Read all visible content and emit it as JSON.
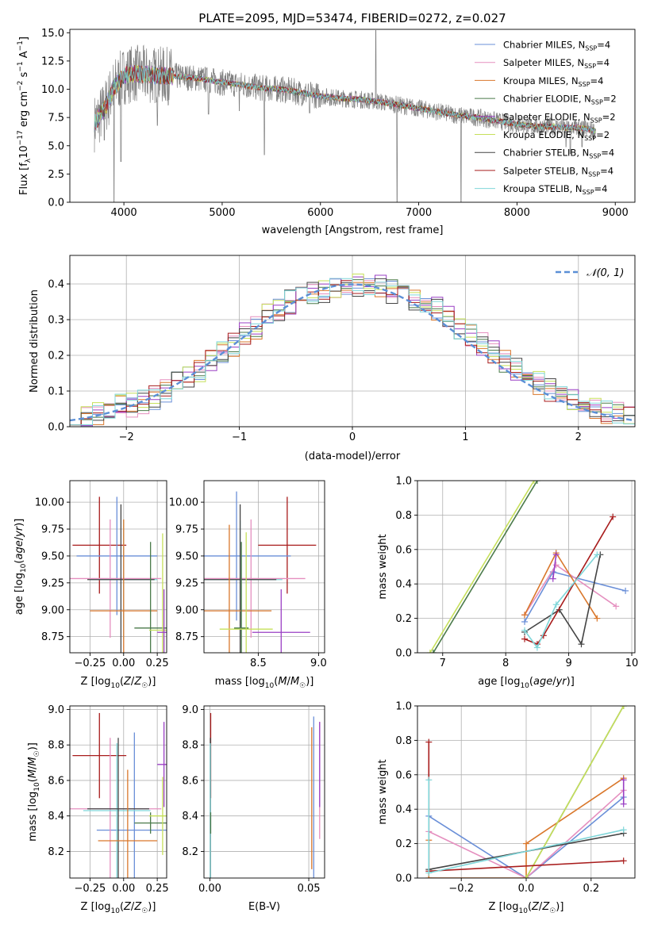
{
  "figure": {
    "title": "PLATE=2095, MJD=53474, FIBERID=0272, z=0.027"
  },
  "colors": {
    "Chabrier MILES": "#6a8fd8",
    "Salpeter MILES": "#e58fbf",
    "Kroupa MILES": "#d9772b",
    "Chabrier ELODIE": "#4a7a4a",
    "Salpeter ELODIE": "#9a3fc4",
    "Kroupa ELODIE": "#c6e05a",
    "Chabrier STELIB": "#444444",
    "Salpeter STELIB": "#a81c1c",
    "Kroupa STELIB": "#7fd6d9",
    "data": "#808080",
    "normal": "#5b8fd6"
  },
  "chart_data": [
    {
      "id": "spectrum",
      "type": "line",
      "title": "PLATE=2095, MJD=53474, FIBERID=0272, z=0.027",
      "xlabel": "wavelength [Angstrom, rest frame]",
      "ylabel": "Flux [f_λ 10^-17 erg cm^-2 s^-1 A^-1]",
      "xlim": [
        3450,
        9200
      ],
      "ylim": [
        0,
        15.3
      ],
      "xticks": [
        4000,
        5000,
        6000,
        7000,
        8000,
        9000
      ],
      "yticks": [
        0.0,
        2.5,
        5.0,
        7.5,
        10.0,
        12.5,
        15.0
      ],
      "grid": false,
      "legend_position": "top-right",
      "legend": [
        {
          "label": "Chabrier MILES, N",
          "sub": "SSP",
          "tail": "=4",
          "key": "Chabrier MILES"
        },
        {
          "label": "Salpeter MILES, N",
          "sub": "SSP",
          "tail": "=4",
          "key": "Salpeter MILES"
        },
        {
          "label": "Kroupa MILES, N",
          "sub": "SSP",
          "tail": "=4",
          "key": "Kroupa MILES"
        },
        {
          "label": "Chabrier ELODIE, N",
          "sub": "SSP",
          "tail": "=2",
          "key": "Chabrier ELODIE"
        },
        {
          "label": "Salpeter ELODIE, N",
          "sub": "SSP",
          "tail": "=2",
          "key": "Salpeter ELODIE"
        },
        {
          "label": "Kroupa ELODIE, N",
          "sub": "SSP",
          "tail": "=2",
          "key": "Kroupa ELODIE"
        },
        {
          "label": "Chabrier STELIB, N",
          "sub": "SSP",
          "tail": "=4",
          "key": "Chabrier STELIB"
        },
        {
          "label": "Salpeter STELIB, N",
          "sub": "SSP",
          "tail": "=4",
          "key": "Salpeter STELIB"
        },
        {
          "label": "Kroupa STELIB, N",
          "sub": "SSP",
          "tail": "=4",
          "key": "Kroupa STELIB"
        }
      ],
      "continuum": [
        [
          3700,
          7.0
        ],
        [
          3800,
          8.2
        ],
        [
          3900,
          10.2
        ],
        [
          4000,
          11.2
        ],
        [
          4100,
          11.4
        ],
        [
          4200,
          11.3
        ],
        [
          4400,
          11.2
        ],
        [
          4600,
          11.1
        ],
        [
          4800,
          10.9
        ],
        [
          5000,
          10.6
        ],
        [
          5200,
          10.4
        ],
        [
          5400,
          10.1
        ],
        [
          5600,
          10.0
        ],
        [
          5800,
          9.7
        ],
        [
          6000,
          9.4
        ],
        [
          6200,
          9.2
        ],
        [
          6400,
          9.1
        ],
        [
          6600,
          8.9
        ],
        [
          6800,
          8.6
        ],
        [
          7000,
          8.3
        ],
        [
          7200,
          8.0
        ],
        [
          7400,
          7.7
        ],
        [
          7600,
          7.5
        ],
        [
          7800,
          7.2
        ],
        [
          8000,
          6.9
        ],
        [
          8200,
          6.7
        ],
        [
          8400,
          6.7
        ],
        [
          8500,
          6.6
        ],
        [
          8600,
          6.6
        ],
        [
          8700,
          6.5
        ],
        [
          8800,
          6.3
        ]
      ],
      "data_wavelength_range": [
        3700,
        8800
      ],
      "features": [
        {
          "x": 3800,
          "y": 5.5
        },
        {
          "x": 3900,
          "y": 0.0
        },
        {
          "x": 3970,
          "y": 3.6
        },
        {
          "x": 4340,
          "y": 6.8
        },
        {
          "x": 4861,
          "y": 7.8
        },
        {
          "x": 5175,
          "y": 8.1
        },
        {
          "x": 5430,
          "y": 4.2
        },
        {
          "x": 5890,
          "y": 7.9
        },
        {
          "x": 6563,
          "y": 15.2
        },
        {
          "x": 6780,
          "y": 0.0
        },
        {
          "x": 7430,
          "y": 0.0
        },
        {
          "x": 8498,
          "y": 4.9
        },
        {
          "x": 8542,
          "y": 4.3
        },
        {
          "x": 8662,
          "y": 4.9
        }
      ]
    },
    {
      "id": "residuals",
      "type": "line",
      "xlabel": "(data-model)/error",
      "ylabel": "Normed distribution",
      "xlim": [
        -2.5,
        2.5
      ],
      "ylim": [
        0,
        0.48
      ],
      "xticks": [
        -2,
        -1,
        0,
        1,
        2
      ],
      "yticks": [
        0.0,
        0.1,
        0.2,
        0.3,
        0.4
      ],
      "grid": true,
      "legend_position": "top-right",
      "legend": [
        {
          "label": "𝒩(0, 1)",
          "key": "normal",
          "style": "dashed"
        }
      ],
      "bin_width": 0.1,
      "bins_from": -2.5,
      "histogram_envelope": [
        0.04,
        0.03,
        0.04,
        0.05,
        0.06,
        0.06,
        0.07,
        0.08,
        0.1,
        0.12,
        0.14,
        0.16,
        0.18,
        0.21,
        0.23,
        0.26,
        0.28,
        0.31,
        0.33,
        0.35,
        0.36,
        0.37,
        0.38,
        0.39,
        0.39,
        0.4,
        0.39,
        0.39,
        0.38,
        0.37,
        0.36,
        0.35,
        0.33,
        0.31,
        0.28,
        0.26,
        0.23,
        0.21,
        0.18,
        0.16,
        0.14,
        0.12,
        0.1,
        0.08,
        0.07,
        0.06,
        0.05,
        0.04,
        0.04,
        0.03
      ]
    },
    {
      "id": "age-vs-Z",
      "type": "scatter",
      "xlabel": "Z [log10(Z/Z☉)]",
      "ylabel": "age  [log10(age/yr)]",
      "xlim": [
        -0.4,
        0.32
      ],
      "ylim": [
        8.6,
        10.2
      ],
      "xticks": [
        -0.25,
        0.0,
        0.25
      ],
      "xticklabels": [
        "−0.25",
        "0.00",
        "0.25"
      ],
      "yticks": [
        8.75,
        9.0,
        9.25,
        9.5,
        9.75,
        10.0
      ],
      "grid": true,
      "points": [
        {
          "key": "Salpeter STELIB",
          "x": -0.18,
          "xerr": 0.2,
          "y": 9.6,
          "yerr": 0.45
        },
        {
          "key": "Chabrier MILES",
          "x": -0.05,
          "xerr": 0.3,
          "y": 9.5,
          "yerr": 0.55
        },
        {
          "key": "Salpeter MILES",
          "x": -0.1,
          "xerr": 0.38,
          "y": 9.29,
          "yerr": 0.55
        },
        {
          "key": "Kroupa STELIB",
          "x": 0.0,
          "xerr": 0.25,
          "y": 9.28,
          "yerr": 0.55
        },
        {
          "key": "Chabrier STELIB",
          "x": -0.02,
          "xerr": 0.25,
          "y": 9.28,
          "yerr": 0.7
        },
        {
          "key": "Kroupa MILES",
          "x": 0.0,
          "xerr": 0.25,
          "y": 8.99,
          "yerr": 0.85
        },
        {
          "key": "Chabrier ELODIE",
          "x": 0.2,
          "xerr": 0.12,
          "y": 8.83,
          "yerr": 0.8
        },
        {
          "key": "Kroupa ELODIE",
          "x": 0.29,
          "xerr": 0.1,
          "y": 8.81,
          "yerr": 0.9
        },
        {
          "key": "Salpeter ELODIE",
          "x": 0.3,
          "xerr": 0.05,
          "y": 8.79,
          "yerr": 0.4
        }
      ]
    },
    {
      "id": "age-vs-mass",
      "type": "scatter",
      "xlabel": "mass [log10(M/M☉)]",
      "ylabel": "",
      "xlim": [
        8.05,
        9.05
      ],
      "ylim": [
        8.6,
        10.2
      ],
      "xticks": [
        8.5,
        9.0
      ],
      "xticklabels": [
        "8.5",
        "9.0"
      ],
      "yticks": [
        8.75,
        9.0,
        9.25,
        9.5,
        9.75,
        10.0
      ],
      "grid": true,
      "points": [
        {
          "key": "Salpeter STELIB",
          "x": 8.74,
          "xerr": 0.24,
          "y": 9.6,
          "yerr": 0.45
        },
        {
          "key": "Chabrier MILES",
          "x": 8.32,
          "xerr": 0.45,
          "y": 9.5,
          "yerr": 0.6
        },
        {
          "key": "Salpeter MILES",
          "x": 8.44,
          "xerr": 0.45,
          "y": 9.29,
          "yerr": 0.55
        },
        {
          "key": "Kroupa STELIB",
          "x": 8.35,
          "xerr": 0.35,
          "y": 9.28,
          "yerr": 0.55
        },
        {
          "key": "Chabrier STELIB",
          "x": 8.35,
          "xerr": 0.3,
          "y": 9.28,
          "yerr": 0.7
        },
        {
          "key": "Kroupa MILES",
          "x": 8.26,
          "xerr": 0.35,
          "y": 8.99,
          "yerr": 0.8
        },
        {
          "key": "Chabrier ELODIE",
          "x": 8.36,
          "xerr": 0.06,
          "y": 8.83,
          "yerr": 0.8
        },
        {
          "key": "Kroupa ELODIE",
          "x": 8.4,
          "xerr": 0.22,
          "y": 8.82,
          "yerr": 0.9
        },
        {
          "key": "Salpeter ELODIE",
          "x": 8.69,
          "xerr": 0.24,
          "y": 8.79,
          "yerr": 0.4
        }
      ]
    },
    {
      "id": "weight-vs-age",
      "type": "line",
      "xlabel": "age  [log10(age/yr)]",
      "ylabel": "mass weight",
      "xlim": [
        6.6,
        10.05
      ],
      "ylim": [
        0,
        1.0
      ],
      "xticks": [
        7,
        8,
        9,
        10
      ],
      "yticks": [
        0.0,
        0.2,
        0.4,
        0.6,
        0.8,
        1.0
      ],
      "grid": true,
      "series": [
        {
          "key": "Chabrier MILES",
          "x": [
            8.3,
            8.75,
            9.9
          ],
          "y": [
            0.18,
            0.47,
            0.36
          ]
        },
        {
          "key": "Salpeter MILES",
          "x": [
            8.3,
            8.8,
            9.75
          ],
          "y": [
            0.22,
            0.51,
            0.27
          ]
        },
        {
          "key": "Kroupa MILES",
          "x": [
            8.3,
            8.8,
            9.45
          ],
          "y": [
            0.22,
            0.58,
            0.2
          ]
        },
        {
          "key": "Chabrier ELODIE",
          "x": [
            6.85,
            8.5
          ],
          "y": [
            0.0,
            1.0
          ]
        },
        {
          "key": "Salpeter ELODIE",
          "x": [
            8.75,
            8.8
          ],
          "y": [
            0.43,
            0.57
          ]
        },
        {
          "key": "Kroupa ELODIE",
          "x": [
            6.8,
            8.45
          ],
          "y": [
            0.0,
            1.0
          ]
        },
        {
          "key": "Chabrier STELIB",
          "x": [
            8.3,
            8.85,
            9.2,
            9.5
          ],
          "y": [
            0.12,
            0.25,
            0.05,
            0.57
          ]
        },
        {
          "key": "Salpeter STELIB",
          "x": [
            8.3,
            8.5,
            8.6,
            9.7
          ],
          "y": [
            0.08,
            0.05,
            0.1,
            0.79
          ]
        },
        {
          "key": "Kroupa STELIB",
          "x": [
            8.3,
            8.5,
            8.8,
            9.45
          ],
          "y": [
            0.13,
            0.03,
            0.28,
            0.57
          ]
        }
      ]
    },
    {
      "id": "mass-vs-Z",
      "type": "scatter",
      "xlabel": "Z [log10(Z/Z☉)]",
      "ylabel": "mass [log10(M/M☉)]",
      "xlim": [
        -0.4,
        0.32
      ],
      "ylim": [
        8.05,
        9.02
      ],
      "xticks": [
        -0.25,
        0.0,
        0.25
      ],
      "xticklabels": [
        "−0.25",
        "0.00",
        "0.25"
      ],
      "yticks": [
        8.2,
        8.4,
        8.6,
        8.8,
        9.0
      ],
      "grid": true,
      "points": [
        {
          "key": "Salpeter STELIB",
          "x": -0.18,
          "xerr": 0.2,
          "y": 8.74,
          "yerr": 0.24
        },
        {
          "key": "Chabrier MILES",
          "x": 0.08,
          "xerr": 0.28,
          "y": 8.32,
          "yerr": 0.55
        },
        {
          "key": "Salpeter MILES",
          "x": -0.1,
          "xerr": 0.38,
          "y": 8.44,
          "yerr": 0.4
        },
        {
          "key": "Kroupa STELIB",
          "x": -0.05,
          "xerr": 0.25,
          "y": 8.43,
          "yerr": 0.38
        },
        {
          "key": "Chabrier STELIB",
          "x": -0.04,
          "xerr": 0.23,
          "y": 8.44,
          "yerr": 0.4
        },
        {
          "key": "Kroupa MILES",
          "x": 0.03,
          "xerr": 0.22,
          "y": 8.26,
          "yerr": 0.4
        },
        {
          "key": "Chabrier ELODIE",
          "x": 0.2,
          "xerr": 0.12,
          "y": 8.36,
          "yerr": 0.06
        },
        {
          "key": "Kroupa ELODIE",
          "x": 0.29,
          "xerr": 0.1,
          "y": 8.4,
          "yerr": 0.22
        },
        {
          "key": "Salpeter ELODIE",
          "x": 0.3,
          "xerr": 0.05,
          "y": 8.69,
          "yerr": 0.24
        }
      ]
    },
    {
      "id": "mass-vs-ebv",
      "type": "scatter",
      "xlabel": "E(B-V)",
      "ylabel": "",
      "xlim": [
        -0.003,
        0.058
      ],
      "ylim": [
        8.05,
        9.02
      ],
      "xticks": [
        0.0,
        0.05
      ],
      "xticklabels": [
        "0.00",
        "0.05"
      ],
      "yticks": [
        8.2,
        8.4,
        8.6,
        8.8,
        9.0
      ],
      "grid": true,
      "points": [
        {
          "key": "Salpeter STELIB",
          "x": 0.0004,
          "xerr": 0.0,
          "y": 8.74,
          "yerr": 0.24
        },
        {
          "key": "Chabrier STELIB",
          "x": 0.0003,
          "xerr": 0.0,
          "y": 8.44,
          "yerr": 0.4
        },
        {
          "key": "Kroupa STELIB",
          "x": 0.0002,
          "xerr": 0.0,
          "y": 8.43,
          "yerr": 0.38
        },
        {
          "key": "Chabrier ELODIE",
          "x": 0.0004,
          "xerr": 0.0,
          "y": 8.36,
          "yerr": 0.06
        },
        {
          "key": "Chabrier MILES",
          "x": 0.0525,
          "xerr": 0.0,
          "y": 8.5,
          "yerr": 0.46
        },
        {
          "key": "Salpeter MILES",
          "x": 0.0555,
          "xerr": 0.0,
          "y": 8.6,
          "yerr": 0.33
        },
        {
          "key": "Kroupa MILES",
          "x": 0.0515,
          "xerr": 0.0,
          "y": 8.5,
          "yerr": 0.4
        },
        {
          "key": "Salpeter ELODIE",
          "x": 0.0555,
          "xerr": 0.0,
          "y": 8.69,
          "yerr": 0.24
        }
      ]
    },
    {
      "id": "weight-vs-Z",
      "type": "line",
      "xlabel": "Z [log10(Z/Z☉)]",
      "ylabel": "mass weight",
      "xlim": [
        -0.335,
        0.335
      ],
      "ylim": [
        0,
        1.0
      ],
      "xticks": [
        -0.2,
        0.0,
        0.2
      ],
      "xticklabels": [
        "−0.2",
        "0.0",
        "0.2"
      ],
      "yticks": [
        0.0,
        0.2,
        0.4,
        0.6,
        0.8,
        1.0
      ],
      "grid": true,
      "series": [
        {
          "key": "Chabrier MILES",
          "x": [
            -0.3,
            0.0,
            0.3
          ],
          "y": [
            0.36,
            0.0,
            0.47
          ]
        },
        {
          "key": "Salpeter MILES",
          "x": [
            -0.3,
            0.0,
            0.3
          ],
          "y": [
            0.27,
            0.0,
            0.51
          ]
        },
        {
          "key": "Kroupa MILES",
          "x": [
            -0.3,
            -0.3,
            0.0,
            0.0,
            0.3
          ],
          "y": [
            0.22,
            0.0,
            0.0,
            0.2,
            0.58
          ]
        },
        {
          "key": "Chabrier ELODIE",
          "x": [
            0.0,
            0.3
          ],
          "y": [
            0.0,
            1.0
          ]
        },
        {
          "key": "Salpeter ELODIE",
          "x": [
            0.3,
            0.3
          ],
          "y": [
            0.43,
            0.57
          ]
        },
        {
          "key": "Kroupa ELODIE",
          "x": [
            0.0,
            0.3
          ],
          "y": [
            0.0,
            1.0
          ]
        },
        {
          "key": "Chabrier STELIB",
          "x": [
            -0.3,
            0.3
          ],
          "y": [
            0.05,
            0.26
          ]
        },
        {
          "key": "Salpeter STELIB",
          "x": [
            -0.3,
            -0.3,
            0.3
          ],
          "y": [
            0.79,
            0.04,
            0.1
          ]
        },
        {
          "key": "Kroupa STELIB",
          "x": [
            -0.3,
            -0.3,
            0.3
          ],
          "y": [
            0.57,
            0.03,
            0.28
          ]
        }
      ]
    }
  ]
}
